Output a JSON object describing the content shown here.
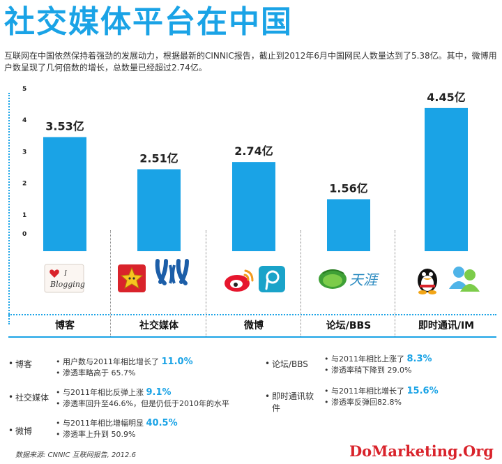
{
  "title": "社交媒体平台在中国",
  "intro": "互联网在中国依然保持着强劲的发展动力，根据最新的CINNIC报告，截止到2012年6月中国网民人数量达到了5.38亿。其中，微博用户数呈现了几何倍数的增长，总数量已经超过2.74亿。",
  "chart_data": {
    "type": "bar",
    "categories": [
      "博客",
      "社交媒体",
      "微博",
      "论坛/BBS",
      "即时通讯/IM"
    ],
    "values": [
      3.53,
      2.51,
      2.74,
      1.56,
      4.45
    ],
    "value_labels": [
      "3.53亿",
      "2.51亿",
      "2.74亿",
      "1.56亿",
      "4.45亿"
    ],
    "unit": "亿",
    "yticks": [
      0,
      1,
      2,
      3,
      4,
      5
    ],
    "ylim": [
      0,
      5
    ],
    "grid": false,
    "bar_color": "#1aa3e6"
  },
  "notes": [
    {
      "label": "博客",
      "lines": [
        {
          "text": "用户数与2011年相比增长了 ",
          "highlight": "11.0%"
        },
        {
          "text": "渗透率略高于 65.7%",
          "highlight": ""
        }
      ]
    },
    {
      "label": "社交媒体",
      "lines": [
        {
          "text": "与2011年相比反弹上涨 ",
          "highlight": "9.1%"
        },
        {
          "text": "渗透率回升至46.6%，但是仍低于2010年的水平",
          "highlight": ""
        }
      ]
    },
    {
      "label": "微博",
      "lines": [
        {
          "text": "与2011年相比增幅明显 ",
          "highlight": "40.5%"
        },
        {
          "text": "渗透率上升到 50.9%",
          "highlight": ""
        }
      ]
    },
    {
      "label": "论坛/BBS",
      "lines": [
        {
          "text": "与2011年相比上涨了 ",
          "highlight": "8.3%"
        },
        {
          "text": "渗透率稍下降到 29.0%",
          "highlight": ""
        }
      ]
    },
    {
      "label": "即时通讯软件",
      "lines": [
        {
          "text": "与2011年相比增长了 ",
          "highlight": "15.6%"
        },
        {
          "text": "渗透率反弹回82.8%",
          "highlight": ""
        }
      ]
    }
  ],
  "icons": {
    "blog": [
      "blogging-icon"
    ],
    "sns": [
      "star-app-icon",
      "renren-icon"
    ],
    "weibo": [
      "sina-weibo-icon",
      "tencent-weibo-icon"
    ],
    "bbs": [
      "tianya-icon"
    ],
    "im": [
      "qq-penguin-icon",
      "msn-icon"
    ]
  },
  "source": "数据来源: CNNIC 互联网报告, 2012.6",
  "brand": "DoMarketing.Org"
}
